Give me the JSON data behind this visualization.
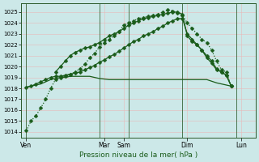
{
  "background_color": "#cce8e8",
  "grid_color": "#e8b8b8",
  "line_color": "#1a5c1a",
  "title": "Pression niveau de la mer( hPa )",
  "ylim": [
    1013.5,
    1025.8
  ],
  "yticks": [
    1014,
    1015,
    1016,
    1017,
    1018,
    1019,
    1020,
    1021,
    1022,
    1023,
    1024,
    1025
  ],
  "xlim": [
    0,
    24
  ],
  "xtick_labels": [
    "Ven",
    "Mar",
    "Sam",
    "Dim",
    "Lun"
  ],
  "xtick_pos": [
    0.5,
    8.5,
    10.5,
    17,
    22.5
  ],
  "vline_positions": [
    0.5,
    8,
    11,
    16.5,
    22
  ],
  "line1_x": [
    0.5,
    1,
    1.5,
    2,
    2.5,
    3,
    3.5,
    4,
    4.5,
    5,
    5.5,
    6,
    6.5,
    7,
    7.5,
    8,
    8.5,
    9,
    9.5,
    10,
    10.5,
    11,
    11.5,
    12,
    12.5,
    13,
    13.5,
    14,
    14.5,
    15,
    15.5,
    16,
    16.5,
    17,
    17.5,
    18,
    18.5,
    19,
    19.5,
    20,
    20.5,
    21,
    21.5
  ],
  "line1_y": [
    1014.1,
    1015.0,
    1015.5,
    1016.2,
    1017.0,
    1018.0,
    1018.8,
    1019.0,
    1019.1,
    1019.3,
    1019.5,
    1019.8,
    1020.2,
    1020.8,
    1021.2,
    1021.8,
    1022.2,
    1022.5,
    1022.8,
    1023.2,
    1023.8,
    1024.0,
    1024.2,
    1024.4,
    1024.5,
    1024.6,
    1024.7,
    1024.8,
    1025.0,
    1025.2,
    1025.1,
    1024.9,
    1024.7,
    1024.0,
    1023.5,
    1023.0,
    1022.5,
    1022.2,
    1021.5,
    1020.5,
    1019.7,
    1019.5,
    1018.2
  ],
  "line2_x": [
    0.5,
    1,
    1.5,
    2,
    2.5,
    3,
    3.5,
    4,
    4.5,
    5,
    5.5,
    6,
    6.5,
    7,
    7.5,
    8,
    8.5,
    9,
    9.5,
    10,
    10.5,
    11,
    11.5,
    12,
    12.5,
    13,
    13.5,
    14,
    14.5,
    15,
    15.5,
    16,
    16.5,
    17,
    17.5,
    18,
    18.5,
    19,
    19.5,
    20,
    20.5,
    21,
    21.5
  ],
  "line2_y": [
    1018.1,
    1018.2,
    1018.4,
    1018.6,
    1018.8,
    1019.0,
    1019.1,
    1019.1,
    1019.2,
    1019.3,
    1019.4,
    1019.5,
    1019.7,
    1019.9,
    1020.1,
    1020.4,
    1020.6,
    1020.9,
    1021.1,
    1021.4,
    1021.7,
    1022.0,
    1022.3,
    1022.5,
    1022.8,
    1023.0,
    1023.2,
    1023.5,
    1023.7,
    1024.0,
    1024.2,
    1024.4,
    1024.4,
    1023.0,
    1022.5,
    1022.0,
    1021.5,
    1021.0,
    1020.5,
    1019.8,
    1019.5,
    1019.2,
    1018.2
  ],
  "line3_x": [
    0.5,
    1,
    1.5,
    2,
    2.5,
    3,
    3.5,
    4,
    4.5,
    5,
    6,
    7,
    8,
    9,
    10,
    11,
    12,
    13,
    14,
    15,
    16,
    17,
    18,
    19,
    20,
    21,
    21.5
  ],
  "line3_y": [
    1018.1,
    1018.2,
    1018.3,
    1018.4,
    1018.6,
    1018.8,
    1018.9,
    1019.0,
    1019.0,
    1019.1,
    1019.1,
    1019.1,
    1018.9,
    1018.8,
    1018.8,
    1018.8,
    1018.8,
    1018.8,
    1018.8,
    1018.8,
    1018.8,
    1018.8,
    1018.8,
    1018.8,
    1018.5,
    1018.3,
    1018.2
  ],
  "line4_x": [
    3.5,
    4,
    4.5,
    5,
    5.5,
    6,
    6.5,
    7,
    7.5,
    8,
    8.5,
    9,
    9.5,
    10,
    10.5,
    11,
    11.5,
    12,
    12.5,
    13,
    13.5,
    14,
    14.5,
    15,
    15.5,
    16,
    16.5,
    17,
    17.5,
    18,
    18.5,
    19,
    19.5,
    20,
    20.5,
    21,
    21.5
  ],
  "line4_y": [
    1019.5,
    1020.0,
    1020.5,
    1021.0,
    1021.3,
    1021.5,
    1021.7,
    1021.8,
    1022.0,
    1022.2,
    1022.5,
    1022.8,
    1023.0,
    1023.2,
    1023.5,
    1023.8,
    1024.0,
    1024.2,
    1024.4,
    1024.5,
    1024.6,
    1024.7,
    1024.8,
    1024.9,
    1025.0,
    1025.0,
    1024.8,
    1022.8,
    1022.3,
    1022.0,
    1021.5,
    1020.8,
    1020.3,
    1019.7,
    1019.5,
    1019.2,
    1018.2
  ],
  "marker": "D",
  "markersize": 2.5,
  "linewidth": 0.9
}
